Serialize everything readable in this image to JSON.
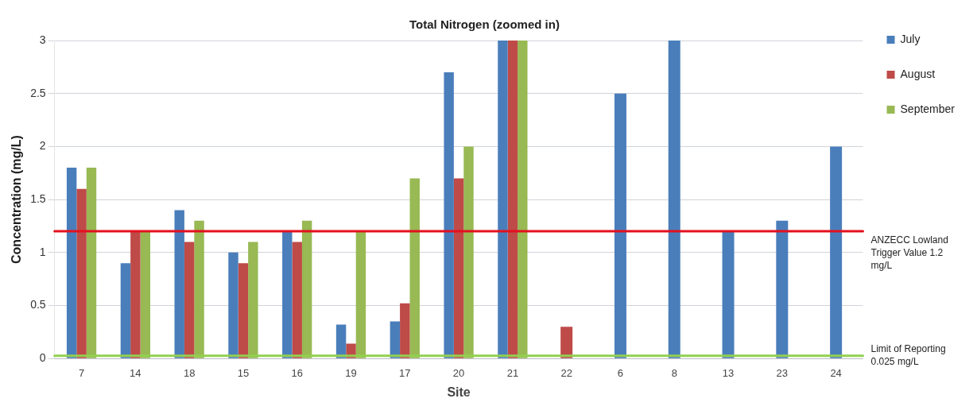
{
  "chart_data": {
    "type": "bar",
    "title": "Total Nitrogen (zoomed in)",
    "xlabel": "Site",
    "ylabel": "Concentration (mg/L)",
    "categories": [
      "7",
      "14",
      "18",
      "15",
      "16",
      "19",
      "17",
      "20",
      "21",
      "22",
      "6",
      "8",
      "13",
      "23",
      "24"
    ],
    "series": [
      {
        "name": "July",
        "color": "#4a7ebb",
        "values": [
          1.8,
          0.9,
          1.4,
          1.0,
          1.2,
          0.32,
          0.35,
          2.7,
          3,
          null,
          2.5,
          3,
          1.2,
          1.3,
          2.0
        ]
      },
      {
        "name": "August",
        "color": "#be4b48",
        "values": [
          1.6,
          1.2,
          1.1,
          0.9,
          1.1,
          0.14,
          0.52,
          1.7,
          3,
          0.3,
          null,
          null,
          null,
          null,
          null
        ]
      },
      {
        "name": "September",
        "color": "#98b954",
        "values": [
          1.8,
          1.2,
          1.3,
          1.1,
          1.3,
          1.2,
          1.7,
          2.0,
          3,
          null,
          null,
          null,
          null,
          null,
          null
        ]
      }
    ],
    "ylim": [
      0,
      3
    ],
    "yticks": [
      0,
      0.5,
      1,
      1.5,
      2,
      2.5,
      3
    ],
    "grid": "y",
    "legend": "right",
    "ref_lines": [
      {
        "axis": "y",
        "value": 1.2,
        "label": "ANZECC Lowland Trigger Value 1.2 mg/L",
        "color": "#e3101e"
      },
      {
        "axis": "y",
        "value": 0.025,
        "label": "Limit of Reporting 0.025 mg/L",
        "color": "#92d050"
      }
    ]
  }
}
